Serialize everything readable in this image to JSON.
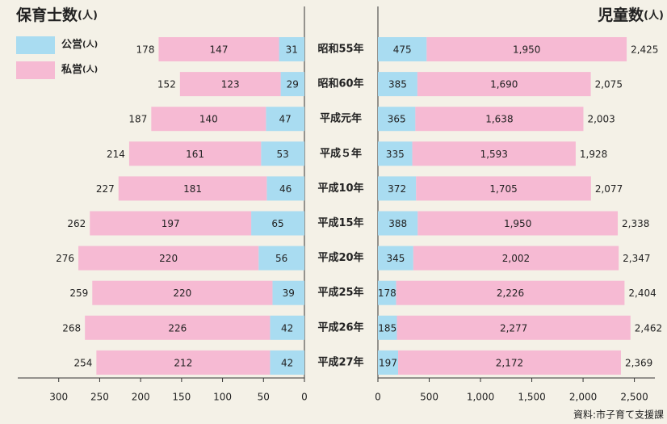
{
  "chart_data": [
    {
      "type": "butterfly-bar",
      "title": "保育士数",
      "title_unit": "(人)",
      "reversed": true,
      "categories": [
        "昭和55年",
        "昭和60年",
        "平成元年",
        "平成５年",
        "平成10年",
        "平成15年",
        "平成20年",
        "平成25年",
        "平成26年",
        "平成27年"
      ],
      "series": [
        {
          "name": "公営",
          "unit": "(人)",
          "color": "#a9dcf1",
          "values": [
            31,
            29,
            47,
            53,
            46,
            65,
            56,
            39,
            42,
            42
          ]
        },
        {
          "name": "私営",
          "unit": "(人)",
          "color": "#f6bad3",
          "values": [
            147,
            123,
            140,
            161,
            181,
            197,
            220,
            220,
            226,
            212
          ]
        }
      ],
      "totals": [
        178,
        152,
        187,
        214,
        227,
        262,
        276,
        259,
        268,
        254
      ],
      "xlim": [
        0,
        350
      ],
      "xticks": [
        0,
        50,
        100,
        150,
        200,
        250,
        300
      ]
    },
    {
      "type": "butterfly-bar",
      "title": "児童数",
      "title_unit": "(人)",
      "reversed": false,
      "series": [
        {
          "name": "公営",
          "color": "#a9dcf1",
          "values": [
            475,
            385,
            365,
            335,
            372,
            388,
            345,
            178,
            185,
            197
          ]
        },
        {
          "name": "私営",
          "color": "#f6bad3",
          "values": [
            1950,
            1690,
            1638,
            1593,
            1705,
            1950,
            2002,
            2226,
            2277,
            2172
          ],
          "value_labels": [
            "1,950",
            "1,690",
            "1,638",
            "1,593",
            "1,705",
            "1,950",
            "2,002",
            "2,226",
            "2,277",
            "2,172"
          ]
        }
      ],
      "totals": [
        2425,
        2075,
        2003,
        1928,
        2077,
        2338,
        2347,
        2404,
        2462,
        2369
      ],
      "total_labels": [
        "2,425",
        "2,075",
        "2,003",
        "1,928",
        "2,077",
        "2,338",
        "2,347",
        "2,404",
        "2,462",
        "2,369"
      ],
      "xlim": [
        0,
        2700
      ],
      "xticks": [
        0,
        500,
        {
          "value": 1000,
          "label": "1,000"
        },
        {
          "value": 1500,
          "label": "1,500"
        },
        {
          "value": 2000,
          "label": "2,000"
        },
        {
          "value": 2500,
          "label": "2,500"
        }
      ]
    }
  ],
  "source": "資料:市子育て支援課"
}
